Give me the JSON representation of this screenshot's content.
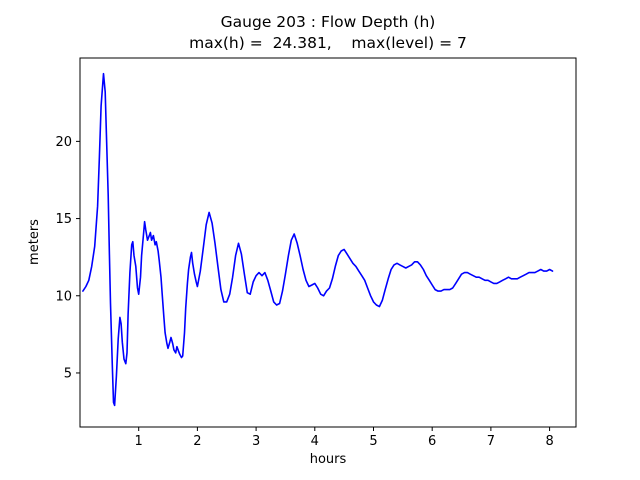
{
  "chart_data": {
    "type": "line",
    "title": "Gauge 203 : Flow Depth (h)",
    "subtitle": "max(h) =  24.381,    max(level) = 7",
    "xlabel": "hours",
    "ylabel": "meters",
    "xlim": [
      0,
      8.45
    ],
    "ylim": [
      1.5,
      25.4
    ],
    "xticks": [
      1,
      2,
      3,
      4,
      5,
      6,
      7,
      8
    ],
    "yticks": [
      5,
      10,
      15,
      20
    ],
    "grid": false,
    "legend": "none",
    "line_color": "#0000ff",
    "background_color": "#ffffff",
    "max_h": 24.381,
    "max_level": 7,
    "series_name": "Flow Depth (h)",
    "points": [
      [
        0.05,
        10.3
      ],
      [
        0.1,
        10.6
      ],
      [
        0.15,
        11.0
      ],
      [
        0.2,
        11.9
      ],
      [
        0.25,
        13.2
      ],
      [
        0.3,
        15.8
      ],
      [
        0.33,
        19.0
      ],
      [
        0.36,
        22.3
      ],
      [
        0.4,
        24.381
      ],
      [
        0.43,
        23.2
      ],
      [
        0.45,
        20.5
      ],
      [
        0.48,
        16.5
      ],
      [
        0.5,
        13.0
      ],
      [
        0.52,
        9.5
      ],
      [
        0.55,
        5.5
      ],
      [
        0.57,
        3.1
      ],
      [
        0.59,
        2.9
      ],
      [
        0.62,
        4.8
      ],
      [
        0.65,
        7.2
      ],
      [
        0.68,
        8.6
      ],
      [
        0.7,
        8.2
      ],
      [
        0.72,
        7.0
      ],
      [
        0.75,
        5.9
      ],
      [
        0.78,
        5.6
      ],
      [
        0.8,
        6.3
      ],
      [
        0.82,
        8.8
      ],
      [
        0.85,
        11.5
      ],
      [
        0.88,
        13.3
      ],
      [
        0.9,
        13.5
      ],
      [
        0.92,
        12.6
      ],
      [
        0.95,
        11.9
      ],
      [
        0.98,
        10.5
      ],
      [
        1.0,
        10.1
      ],
      [
        1.03,
        11.2
      ],
      [
        1.05,
        12.6
      ],
      [
        1.08,
        13.9
      ],
      [
        1.1,
        14.8
      ],
      [
        1.12,
        14.3
      ],
      [
        1.15,
        13.6
      ],
      [
        1.18,
        13.9
      ],
      [
        1.2,
        14.1
      ],
      [
        1.22,
        13.6
      ],
      [
        1.25,
        13.9
      ],
      [
        1.28,
        13.3
      ],
      [
        1.3,
        13.5
      ],
      [
        1.33,
        12.9
      ],
      [
        1.35,
        12.3
      ],
      [
        1.38,
        11.2
      ],
      [
        1.4,
        10.1
      ],
      [
        1.43,
        8.6
      ],
      [
        1.45,
        7.6
      ],
      [
        1.48,
        6.9
      ],
      [
        1.5,
        6.6
      ],
      [
        1.53,
        7.0
      ],
      [
        1.55,
        7.3
      ],
      [
        1.58,
        6.9
      ],
      [
        1.6,
        6.5
      ],
      [
        1.63,
        6.3
      ],
      [
        1.65,
        6.7
      ],
      [
        1.68,
        6.4
      ],
      [
        1.7,
        6.2
      ],
      [
        1.73,
        6.0
      ],
      [
        1.75,
        6.1
      ],
      [
        1.78,
        7.6
      ],
      [
        1.8,
        9.2
      ],
      [
        1.83,
        10.8
      ],
      [
        1.85,
        11.7
      ],
      [
        1.88,
        12.5
      ],
      [
        1.9,
        12.8
      ],
      [
        1.92,
        12.1
      ],
      [
        1.95,
        11.4
      ],
      [
        1.98,
        10.9
      ],
      [
        2.0,
        10.6
      ],
      [
        2.05,
        11.6
      ],
      [
        2.1,
        13.1
      ],
      [
        2.15,
        14.6
      ],
      [
        2.2,
        15.4
      ],
      [
        2.25,
        14.7
      ],
      [
        2.3,
        13.4
      ],
      [
        2.35,
        11.9
      ],
      [
        2.4,
        10.4
      ],
      [
        2.45,
        9.6
      ],
      [
        2.5,
        9.6
      ],
      [
        2.55,
        10.1
      ],
      [
        2.6,
        11.2
      ],
      [
        2.65,
        12.6
      ],
      [
        2.7,
        13.4
      ],
      [
        2.75,
        12.7
      ],
      [
        2.8,
        11.4
      ],
      [
        2.85,
        10.2
      ],
      [
        2.9,
        10.1
      ],
      [
        2.95,
        10.9
      ],
      [
        3.0,
        11.3
      ],
      [
        3.05,
        11.5
      ],
      [
        3.1,
        11.3
      ],
      [
        3.15,
        11.5
      ],
      [
        3.2,
        11.0
      ],
      [
        3.25,
        10.3
      ],
      [
        3.3,
        9.6
      ],
      [
        3.35,
        9.4
      ],
      [
        3.4,
        9.5
      ],
      [
        3.45,
        10.3
      ],
      [
        3.5,
        11.4
      ],
      [
        3.55,
        12.6
      ],
      [
        3.6,
        13.6
      ],
      [
        3.65,
        14.0
      ],
      [
        3.7,
        13.4
      ],
      [
        3.75,
        12.6
      ],
      [
        3.8,
        11.7
      ],
      [
        3.85,
        11.0
      ],
      [
        3.9,
        10.6
      ],
      [
        3.95,
        10.7
      ],
      [
        4.0,
        10.8
      ],
      [
        4.05,
        10.5
      ],
      [
        4.1,
        10.1
      ],
      [
        4.15,
        10.0
      ],
      [
        4.2,
        10.3
      ],
      [
        4.25,
        10.5
      ],
      [
        4.3,
        11.1
      ],
      [
        4.35,
        11.9
      ],
      [
        4.4,
        12.6
      ],
      [
        4.45,
        12.9
      ],
      [
        4.5,
        13.0
      ],
      [
        4.55,
        12.7
      ],
      [
        4.6,
        12.4
      ],
      [
        4.65,
        12.1
      ],
      [
        4.7,
        11.9
      ],
      [
        4.75,
        11.6
      ],
      [
        4.8,
        11.3
      ],
      [
        4.85,
        11.0
      ],
      [
        4.9,
        10.5
      ],
      [
        4.95,
        10.0
      ],
      [
        5.0,
        9.6
      ],
      [
        5.05,
        9.4
      ],
      [
        5.1,
        9.3
      ],
      [
        5.15,
        9.7
      ],
      [
        5.2,
        10.4
      ],
      [
        5.25,
        11.1
      ],
      [
        5.3,
        11.7
      ],
      [
        5.35,
        12.0
      ],
      [
        5.4,
        12.1
      ],
      [
        5.45,
        12.0
      ],
      [
        5.5,
        11.9
      ],
      [
        5.55,
        11.8
      ],
      [
        5.6,
        11.9
      ],
      [
        5.65,
        12.0
      ],
      [
        5.7,
        12.2
      ],
      [
        5.75,
        12.2
      ],
      [
        5.8,
        12.0
      ],
      [
        5.85,
        11.7
      ],
      [
        5.9,
        11.3
      ],
      [
        5.95,
        11.0
      ],
      [
        6.0,
        10.7
      ],
      [
        6.05,
        10.4
      ],
      [
        6.1,
        10.3
      ],
      [
        6.15,
        10.3
      ],
      [
        6.2,
        10.4
      ],
      [
        6.25,
        10.4
      ],
      [
        6.3,
        10.4
      ],
      [
        6.35,
        10.5
      ],
      [
        6.4,
        10.8
      ],
      [
        6.45,
        11.1
      ],
      [
        6.5,
        11.4
      ],
      [
        6.55,
        11.5
      ],
      [
        6.6,
        11.5
      ],
      [
        6.65,
        11.4
      ],
      [
        6.7,
        11.3
      ],
      [
        6.75,
        11.2
      ],
      [
        6.8,
        11.2
      ],
      [
        6.85,
        11.1
      ],
      [
        6.9,
        11.0
      ],
      [
        6.95,
        11.0
      ],
      [
        7.0,
        10.9
      ],
      [
        7.05,
        10.8
      ],
      [
        7.1,
        10.8
      ],
      [
        7.15,
        10.9
      ],
      [
        7.2,
        11.0
      ],
      [
        7.25,
        11.1
      ],
      [
        7.3,
        11.2
      ],
      [
        7.35,
        11.1
      ],
      [
        7.4,
        11.1
      ],
      [
        7.45,
        11.1
      ],
      [
        7.5,
        11.2
      ],
      [
        7.55,
        11.3
      ],
      [
        7.6,
        11.4
      ],
      [
        7.65,
        11.5
      ],
      [
        7.7,
        11.5
      ],
      [
        7.75,
        11.5
      ],
      [
        7.8,
        11.6
      ],
      [
        7.85,
        11.7
      ],
      [
        7.9,
        11.6
      ],
      [
        7.95,
        11.6
      ],
      [
        8.0,
        11.7
      ],
      [
        8.05,
        11.6
      ]
    ]
  }
}
